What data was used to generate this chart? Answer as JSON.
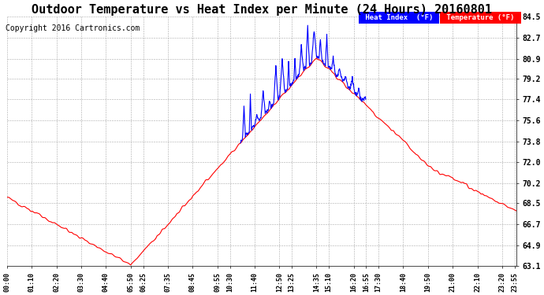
{
  "title": "Outdoor Temperature vs Heat Index per Minute (24 Hours) 20160801",
  "copyright": "Copyright 2016 Cartronics.com",
  "ylabel_right_ticks": [
    84.5,
    82.7,
    80.9,
    79.2,
    77.4,
    75.6,
    73.8,
    72.0,
    70.2,
    68.5,
    66.7,
    64.9,
    63.1
  ],
  "ylim": [
    63.1,
    84.5
  ],
  "temp_color": "#ff0000",
  "heat_color": "#0000ff",
  "bg_color": "#ffffff",
  "grid_color": "#aaaaaa",
  "title_fontsize": 11,
  "copyright_fontsize": 7,
  "legend_heat_bg": "#0000ff",
  "legend_temp_bg": "#ff0000",
  "x_tick_labels": [
    "00:00",
    "01:10",
    "02:20",
    "03:30",
    "04:40",
    "05:50",
    "06:25",
    "07:35",
    "08:45",
    "09:55",
    "10:30",
    "11:40",
    "12:50",
    "13:25",
    "14:35",
    "15:10",
    "16:20",
    "16:55",
    "17:30",
    "18:40",
    "19:50",
    "21:00",
    "22:10",
    "23:20",
    "23:55"
  ],
  "x_tick_minutes": [
    0,
    70,
    140,
    210,
    280,
    350,
    385,
    455,
    525,
    595,
    630,
    700,
    770,
    805,
    875,
    910,
    980,
    1015,
    1050,
    1120,
    1190,
    1260,
    1330,
    1400,
    1435
  ]
}
